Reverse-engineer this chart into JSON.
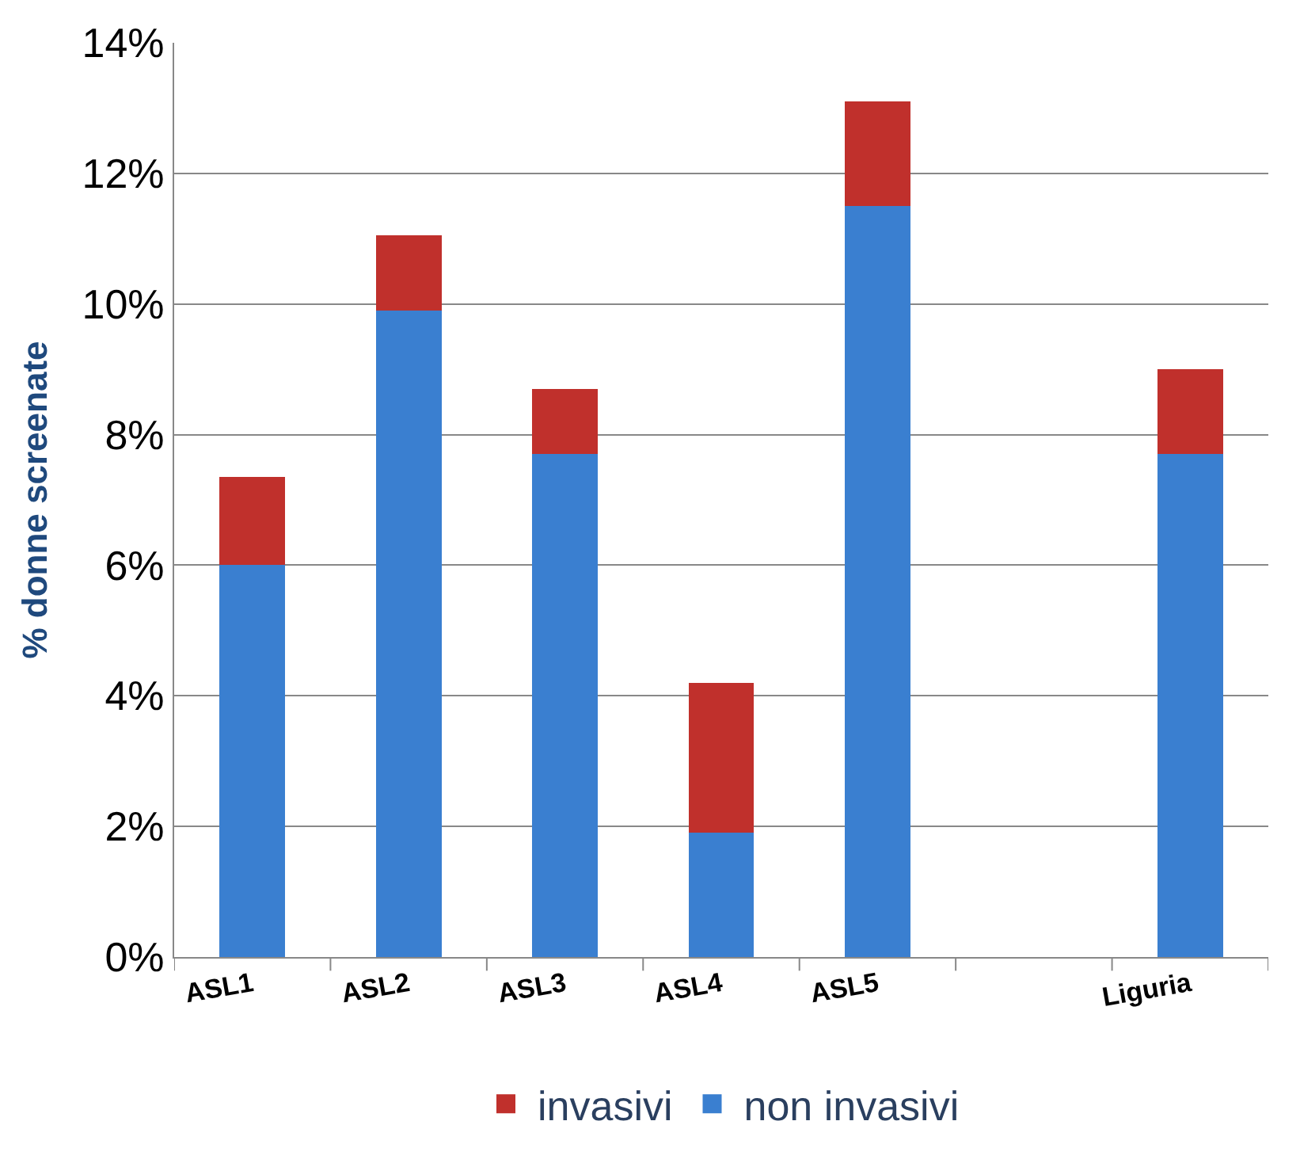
{
  "chart_data": {
    "type": "bar",
    "stacked": true,
    "ylabel": "% donne screenate",
    "categories": [
      "ASL1",
      "ASL2",
      "ASL3",
      "ASL4",
      "ASL5",
      null,
      "Liguria"
    ],
    "series": [
      {
        "name": "non invasivi",
        "color": "#3a7fd0",
        "values": [
          6.0,
          9.9,
          7.7,
          1.9,
          11.5,
          null,
          7.7
        ]
      },
      {
        "name": "invasivi",
        "color": "#c0302c",
        "values": [
          1.35,
          1.15,
          1.0,
          2.3,
          1.6,
          null,
          1.3
        ]
      }
    ],
    "ylim": [
      0,
      14
    ],
    "yticks": [
      {
        "value": 0,
        "label": "0%"
      },
      {
        "value": 2,
        "label": "2%"
      },
      {
        "value": 4,
        "label": "4%"
      },
      {
        "value": 6,
        "label": "6%"
      },
      {
        "value": 8,
        "label": "8%"
      },
      {
        "value": 10,
        "label": "10%"
      },
      {
        "value": 12,
        "label": "12%"
      },
      {
        "value": 14,
        "label": "14%"
      }
    ],
    "grid": "y",
    "legend": "bottom"
  }
}
